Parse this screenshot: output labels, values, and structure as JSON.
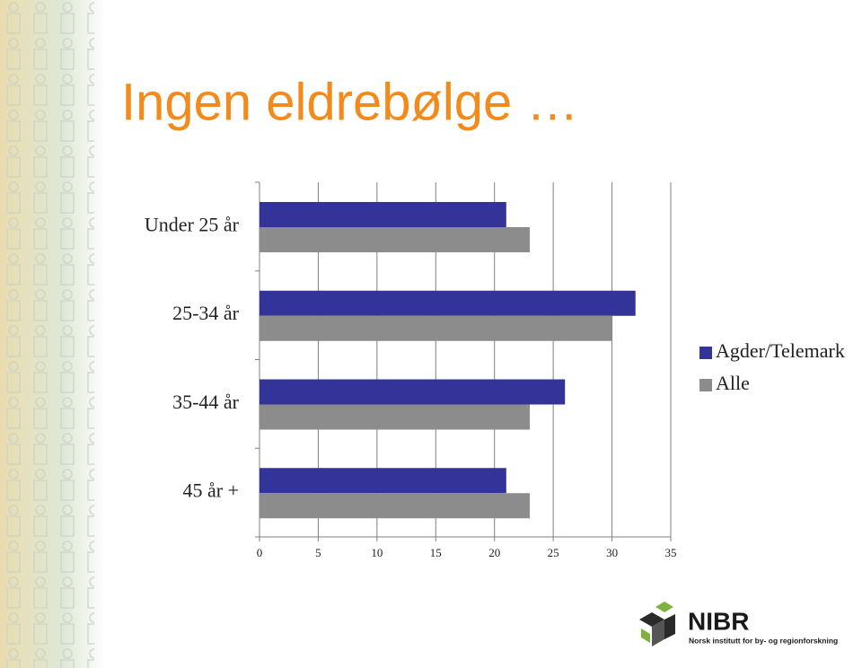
{
  "chart_data": {
    "type": "barh",
    "title": "Ingen eldrebølge …",
    "categories": [
      "Under 25 år",
      "25-34 år",
      "35-44 år",
      "45 år +"
    ],
    "series": [
      {
        "name": "Agder/Telemark",
        "color": "#333399",
        "values": [
          21,
          32,
          26,
          21
        ]
      },
      {
        "name": "Alle",
        "color": "#8c8c8c",
        "values": [
          23,
          30,
          23,
          23
        ]
      }
    ],
    "xlim": [
      0,
      35
    ],
    "xticks": [
      0,
      5,
      10,
      15,
      20,
      25,
      30,
      35
    ],
    "grid": true,
    "legend": "right"
  },
  "logo": {
    "name": "NIBR",
    "subtitle": "Norsk institutt for by- og regionforskning"
  }
}
